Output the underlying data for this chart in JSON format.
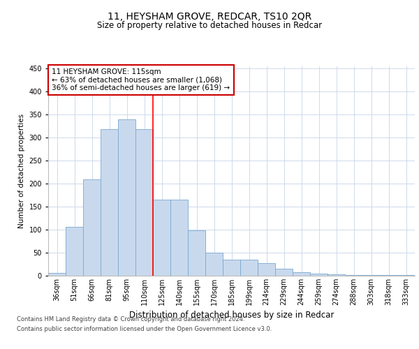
{
  "title1": "11, HEYSHAM GROVE, REDCAR, TS10 2QR",
  "title2": "Size of property relative to detached houses in Redcar",
  "xlabel": "Distribution of detached houses by size in Redcar",
  "ylabel": "Number of detached properties",
  "categories": [
    "36sqm",
    "51sqm",
    "66sqm",
    "81sqm",
    "95sqm",
    "110sqm",
    "125sqm",
    "140sqm",
    "155sqm",
    "170sqm",
    "185sqm",
    "199sqm",
    "214sqm",
    "229sqm",
    "244sqm",
    "259sqm",
    "274sqm",
    "288sqm",
    "303sqm",
    "318sqm",
    "333sqm"
  ],
  "values": [
    6,
    106,
    210,
    318,
    340,
    318,
    165,
    165,
    98,
    50,
    35,
    35,
    28,
    15,
    8,
    5,
    3,
    2,
    1,
    1,
    1
  ],
  "bar_color": "#c9d9ed",
  "bar_edge_color": "#7aa8d0",
  "bar_width": 1.0,
  "red_line_x": 5.5,
  "annotation_line1": "11 HEYSHAM GROVE: 115sqm",
  "annotation_line2": "← 63% of detached houses are smaller (1,068)",
  "annotation_line3": "36% of semi-detached houses are larger (619) →",
  "annotation_box_color": "#ffffff",
  "annotation_box_edge": "#cc0000",
  "ylim": [
    0,
    455
  ],
  "yticks": [
    0,
    50,
    100,
    150,
    200,
    250,
    300,
    350,
    400,
    450
  ],
  "footer1": "Contains HM Land Registry data © Crown copyright and database right 2024.",
  "footer2": "Contains public sector information licensed under the Open Government Licence v3.0.",
  "background_color": "#ffffff",
  "grid_color": "#c8d4e8",
  "title1_fontsize": 10,
  "title2_fontsize": 8.5,
  "ylabel_fontsize": 7.5,
  "xlabel_fontsize": 8.5,
  "tick_fontsize": 7,
  "annot_fontsize": 7.5,
  "footer_fontsize": 6
}
